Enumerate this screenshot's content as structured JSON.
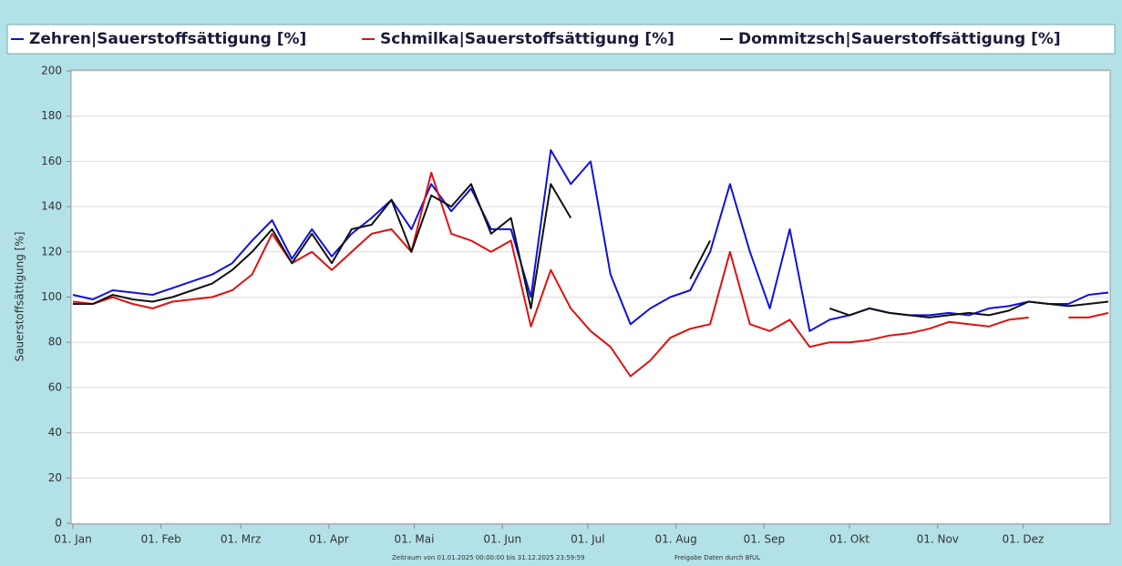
{
  "chart_data": {
    "type": "line",
    "ylabel": "Sauerstoffsättigung [%]",
    "footer": [
      "Zeitraum  von 01.01.2025 00:00:00 bis  31.12.2025 23:59:59",
      "Freigabe Daten durch BfUL"
    ],
    "x": [
      "2025-01-01",
      "2025-01-08",
      "2025-01-15",
      "2025-01-22",
      "2025-01-29",
      "2025-02-05",
      "2025-02-12",
      "2025-02-19",
      "2025-02-26",
      "2025-03-05",
      "2025-03-12",
      "2025-03-19",
      "2025-03-26",
      "2025-04-02",
      "2025-04-09",
      "2025-04-16",
      "2025-04-23",
      "2025-04-30",
      "2025-05-07",
      "2025-05-14",
      "2025-05-21",
      "2025-05-28",
      "2025-06-04",
      "2025-06-11",
      "2025-06-18",
      "2025-06-25",
      "2025-07-02",
      "2025-07-09",
      "2025-07-16",
      "2025-07-23",
      "2025-07-30",
      "2025-08-06",
      "2025-08-13",
      "2025-08-20",
      "2025-08-27",
      "2025-09-03",
      "2025-09-10",
      "2025-09-17",
      "2025-09-24",
      "2025-10-01",
      "2025-10-08",
      "2025-10-15",
      "2025-10-22",
      "2025-10-29",
      "2025-11-05",
      "2025-11-12",
      "2025-11-19",
      "2025-11-26",
      "2025-12-03",
      "2025-12-10",
      "2025-12-17",
      "2025-12-24",
      "2025-12-31"
    ],
    "series": [
      {
        "name": "Zehren|Sauerstoffsättigung [%]",
        "color": "#1010e0",
        "values": [
          101,
          99,
          103,
          102,
          101,
          104,
          107,
          110,
          115,
          125,
          134,
          117,
          130,
          118,
          128,
          135,
          143,
          130,
          150,
          138,
          148,
          130,
          130,
          100,
          165,
          150,
          160,
          110,
          88,
          95,
          100,
          103,
          120,
          150,
          120,
          95,
          130,
          85,
          90,
          92,
          95,
          93,
          92,
          92,
          93,
          92,
          95,
          96,
          98,
          97,
          97,
          101,
          102
        ]
      },
      {
        "name": "Schmilka|Sauerstoffsättigung [%]",
        "color": "#e01010",
        "values": [
          98,
          97,
          100,
          97,
          95,
          98,
          99,
          100,
          103,
          110,
          128,
          115,
          120,
          112,
          120,
          128,
          130,
          120,
          155,
          128,
          125,
          120,
          125,
          87,
          112,
          95,
          85,
          78,
          65,
          72,
          82,
          86,
          88,
          120,
          88,
          85,
          90,
          78,
          80,
          80,
          81,
          83,
          84,
          86,
          89,
          88,
          87,
          90,
          91,
          null,
          91,
          91,
          93
        ]
      },
      {
        "name": "Dommitzsch|Sauerstoffsättigung [%]",
        "color": "#111111",
        "values": [
          97,
          97,
          101,
          99,
          98,
          100,
          103,
          106,
          112,
          120,
          130,
          115,
          128,
          115,
          130,
          132,
          143,
          120,
          145,
          140,
          150,
          128,
          135,
          95,
          150,
          135,
          null,
          null,
          null,
          null,
          null,
          108,
          125,
          null,
          null,
          null,
          null,
          null,
          95,
          92,
          95,
          93,
          92,
          91,
          92,
          93,
          92,
          94,
          98,
          97,
          96,
          97,
          98
        ]
      }
    ],
    "xlim": [
      "2025-01-01",
      "2025-12-31"
    ],
    "xticks": [
      {
        "value": "2025-01-01",
        "label": "01. Jan"
      },
      {
        "value": "2025-02-01",
        "label": "01. Feb"
      },
      {
        "value": "2025-03-01",
        "label": "01. Mrz"
      },
      {
        "value": "2025-04-01",
        "label": "01. Apr"
      },
      {
        "value": "2025-05-01",
        "label": "01. Mai"
      },
      {
        "value": "2025-06-01",
        "label": "01. Jun"
      },
      {
        "value": "2025-07-01",
        "label": "01. Jul"
      },
      {
        "value": "2025-08-01",
        "label": "01. Aug"
      },
      {
        "value": "2025-09-01",
        "label": "01. Sep"
      },
      {
        "value": "2025-10-01",
        "label": "01. Okt"
      },
      {
        "value": "2025-11-01",
        "label": "01. Nov"
      },
      {
        "value": "2025-12-01",
        "label": "01. Dez"
      }
    ],
    "ylim": [
      0,
      200
    ],
    "yticks": [
      0,
      20,
      40,
      60,
      80,
      100,
      120,
      140,
      160,
      180,
      200
    ],
    "grid": true
  }
}
